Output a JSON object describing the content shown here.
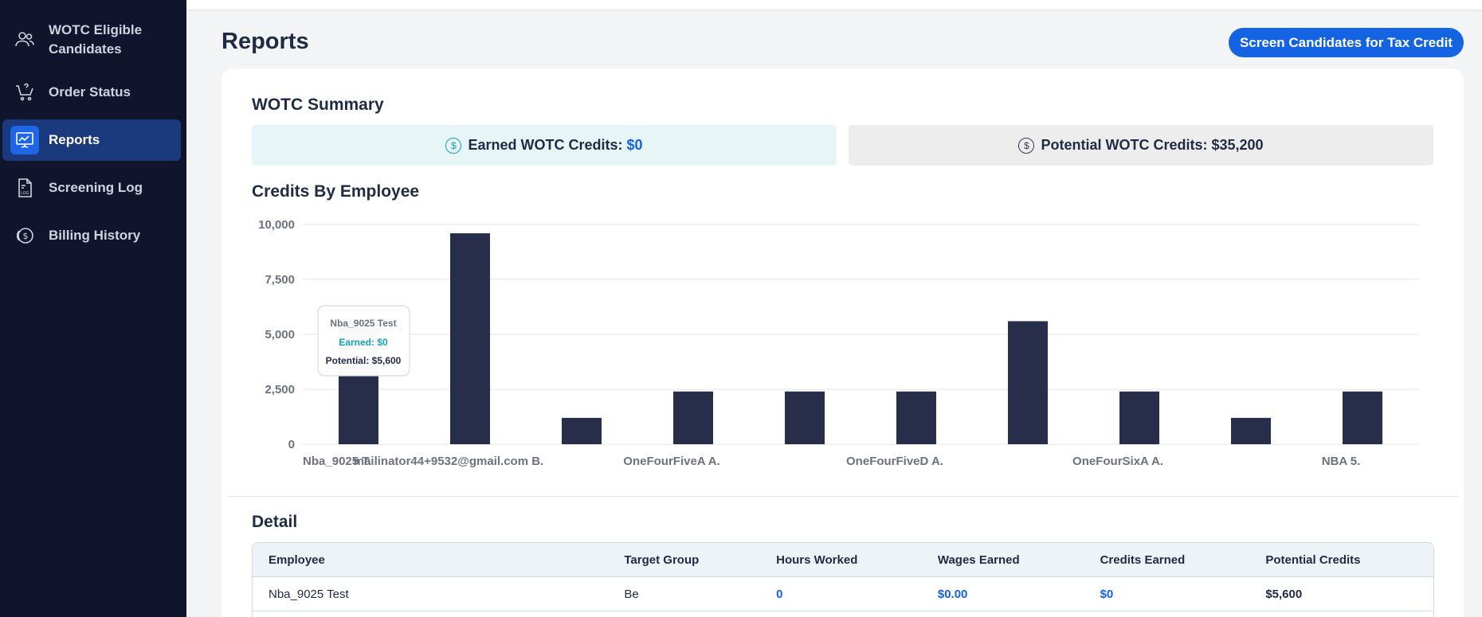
{
  "sidebar": {
    "items": [
      {
        "label_line1": "WOTC Eligible",
        "label_line2": "Candidates",
        "icon": "users-icon"
      },
      {
        "label": "Order Status",
        "icon": "cart-icon"
      },
      {
        "label": "Reports",
        "icon": "chart-icon",
        "active": true
      },
      {
        "label": "Screening Log",
        "icon": "log-file-icon"
      },
      {
        "label": "Billing History",
        "icon": "dollar-coin-icon"
      }
    ]
  },
  "header": {
    "title": "Reports",
    "cta_label": "Screen Candidates for Tax Credit"
  },
  "summary": {
    "title": "WOTC Summary",
    "earned_label": "Earned WOTC Credits:",
    "earned_value": "$0",
    "potential_label": "Potential WOTC Credits:",
    "potential_value": "$35,200"
  },
  "credits_title": "Credits By Employee",
  "chart_data": {
    "type": "bar",
    "categories": [
      "Nba_9025 T.",
      "mailinator44+9532@gmail.com B.",
      "",
      "OneFourFiveA A.",
      "",
      "OneFourFiveD A.",
      "",
      "OneFourSixA A.",
      "",
      "NBA 5."
    ],
    "x_tick_labels": [
      "Nba_9025 T.",
      "mailinator44+9532@gmail.com B.",
      "OneFourFiveA A.",
      "OneFourFiveD A.",
      "OneFourSixA A.",
      "NBA 5."
    ],
    "values": [
      5600,
      9600,
      1200,
      2400,
      2400,
      2400,
      5600,
      2400,
      1200,
      2400
    ],
    "ylim": [
      0,
      10000
    ],
    "yticks": [
      "0",
      "2,500",
      "5,000",
      "7,500",
      "10,000"
    ],
    "ytick_values": [
      0,
      2500,
      5000,
      7500,
      10000
    ],
    "grid": true,
    "bar_color": "#282e4a",
    "tooltip": {
      "title": "Nba_9025 Test",
      "earned": "Earned: $0",
      "potential": "Potential: $5,600"
    }
  },
  "detail": {
    "title": "Detail",
    "columns": [
      "Employee",
      "Target Group",
      "Hours Worked",
      "Wages Earned",
      "Credits Earned",
      "Potential Credits"
    ],
    "rows": [
      [
        "Nba_9025 Test",
        "Be",
        "0",
        "$0.00",
        "$0",
        "$5,600"
      ]
    ]
  },
  "colors": {
    "accent": "#1463e3",
    "sidebar_bg": "#10142c",
    "teal": "#15a3b4"
  }
}
